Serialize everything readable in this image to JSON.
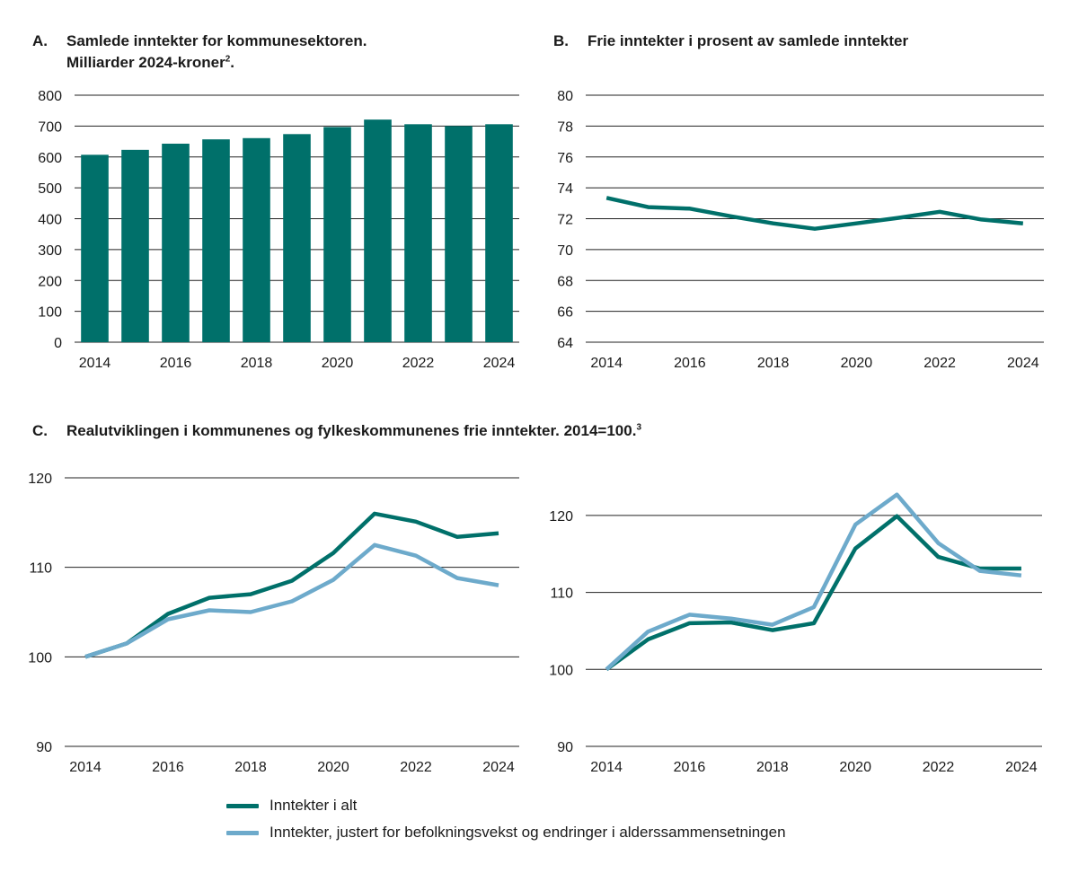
{
  "colors": {
    "teal": "#00706a",
    "lightblue": "#6daacb",
    "grid": "#222222"
  },
  "panelA": {
    "letter": "A.",
    "title_line1": "Samlede inntekter for kommunesektoren.",
    "title_line2": "Milliarder 2024-kroner",
    "title_sup": "2",
    "title_end": "."
  },
  "panelB": {
    "letter": "B.",
    "title": "Frie inntekter i prosent av samlede inntekter"
  },
  "panelC": {
    "letter": "C.",
    "title": "Realutviklingen i kommunenes og fylkeskommunenes frie inntekter. 2014=100.",
    "title_sup": "3"
  },
  "legend": {
    "items": [
      "Inntekter i alt",
      "Inntekter, justert for befolkningsvekst og endringer i alderssammensetningen"
    ]
  },
  "chart_data": [
    {
      "id": "A",
      "type": "bar",
      "categories": [
        "2014",
        "2015",
        "2016",
        "2017",
        "2018",
        "2019",
        "2020",
        "2021",
        "2022",
        "2023",
        "2024"
      ],
      "xtick_labels": [
        "2014",
        "2016",
        "2018",
        "2020",
        "2022",
        "2024"
      ],
      "values": [
        607,
        623,
        643,
        657,
        661,
        674,
        697,
        721,
        706,
        700,
        706
      ],
      "ylim": [
        0,
        800
      ],
      "yticks": [
        0,
        100,
        200,
        300,
        400,
        500,
        600,
        700,
        800
      ],
      "grid": true,
      "color": "teal"
    },
    {
      "id": "B",
      "type": "line",
      "x": [
        2014,
        2015,
        2016,
        2017,
        2018,
        2019,
        2020,
        2021,
        2022,
        2023,
        2024
      ],
      "xtick_labels": [
        "2014",
        "2016",
        "2018",
        "2020",
        "2022",
        "2024"
      ],
      "ylim": [
        64,
        80
      ],
      "yticks": [
        64,
        66,
        68,
        70,
        72,
        74,
        76,
        78,
        80
      ],
      "grid": true,
      "series": [
        {
          "values": [
            73.35,
            72.75,
            72.65,
            72.15,
            71.7,
            71.35,
            71.7,
            72.05,
            72.45,
            71.95,
            71.7
          ],
          "color": "teal"
        }
      ]
    },
    {
      "id": "C1",
      "type": "line",
      "x": [
        2014,
        2015,
        2016,
        2017,
        2018,
        2019,
        2020,
        2021,
        2022,
        2023,
        2024
      ],
      "xtick_labels": [
        "2014",
        "2016",
        "2018",
        "2020",
        "2022",
        "2024"
      ],
      "ylim": [
        90,
        120
      ],
      "yticks": [
        90,
        100,
        110,
        120
      ],
      "grid": true,
      "series": [
        {
          "name": "Inntekter i alt",
          "values": [
            100,
            101.5,
            104.8,
            106.6,
            107,
            108.5,
            111.6,
            116,
            115.1,
            113.4,
            113.8
          ],
          "color": "teal"
        },
        {
          "name": "Inntekter, justert for befolkningsvekst og endringer i alderssammensetningen",
          "values": [
            100,
            101.5,
            104.2,
            105.2,
            105,
            106.2,
            108.6,
            112.5,
            111.3,
            108.8,
            108
          ],
          "color": "lightblue"
        }
      ]
    },
    {
      "id": "C2",
      "type": "line",
      "x": [
        2014,
        2015,
        2016,
        2017,
        2018,
        2019,
        2020,
        2021,
        2022,
        2023,
        2024
      ],
      "xtick_labels": [
        "2014",
        "2016",
        "2018",
        "2020",
        "2022",
        "2024"
      ],
      "ylim": [
        90,
        125
      ],
      "yticks": [
        90,
        100,
        110,
        120
      ],
      "grid": true,
      "series": [
        {
          "name": "Inntekter i alt",
          "values": [
            100,
            103.9,
            106,
            106.1,
            105.1,
            106,
            115.7,
            119.9,
            114.6,
            113.1,
            113.1
          ],
          "color": "teal"
        },
        {
          "name": "Inntekter, justert for befolkningsvekst og endringer i alderssammensetningen",
          "values": [
            100,
            104.9,
            107.1,
            106.6,
            105.8,
            108.1,
            118.8,
            122.7,
            116.4,
            112.8,
            112.2
          ],
          "color": "lightblue"
        }
      ]
    }
  ]
}
